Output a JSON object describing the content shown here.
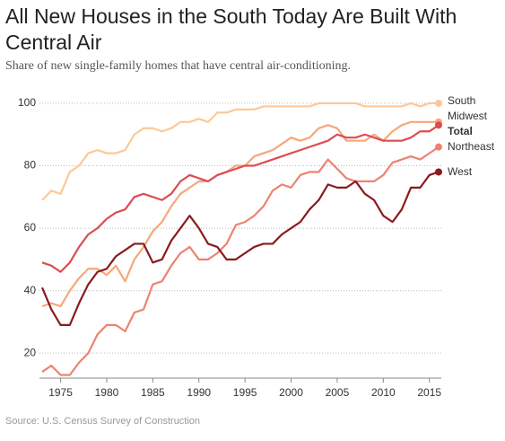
{
  "chart_data": {
    "type": "line",
    "title": "All New Houses in the South Today Are Built With Central Air",
    "subtitle": "Share of new single-family homes that have central air-conditioning.",
    "source": "Source: U.S. Census Survey of Construction",
    "x": [
      1973,
      1974,
      1975,
      1976,
      1977,
      1978,
      1979,
      1980,
      1981,
      1982,
      1983,
      1984,
      1985,
      1986,
      1987,
      1988,
      1989,
      1990,
      1991,
      1992,
      1993,
      1994,
      1995,
      1996,
      1997,
      1998,
      1999,
      2000,
      2001,
      2002,
      2003,
      2004,
      2005,
      2006,
      2007,
      2008,
      2009,
      2010,
      2011,
      2012,
      2013,
      2014,
      2015,
      2016
    ],
    "xlim": [
      1973,
      2016
    ],
    "xticks": [
      1975,
      1980,
      1985,
      1990,
      1995,
      2000,
      2005,
      2010,
      2015
    ],
    "ylim": [
      12,
      102
    ],
    "yticks": [
      20,
      40,
      60,
      80,
      100
    ],
    "grid": true,
    "series": [
      {
        "name": "South",
        "color": "#fdc896",
        "values": [
          69,
          72,
          71,
          78,
          80,
          84,
          85,
          84,
          84,
          85,
          90,
          92,
          92,
          91,
          92,
          94,
          94,
          95,
          94,
          97,
          97,
          98,
          98,
          98,
          99,
          99,
          99,
          99,
          99,
          99,
          100,
          100,
          100,
          100,
          100,
          99,
          99,
          99,
          99,
          99,
          100,
          99,
          100,
          100
        ]
      },
      {
        "name": "Midwest",
        "color": "#f5a878",
        "values": [
          35,
          36,
          35,
          40,
          44,
          47,
          47,
          45,
          48,
          43,
          50,
          54,
          59,
          62,
          67,
          71,
          73,
          75,
          75,
          77,
          78,
          80,
          80,
          83,
          84,
          85,
          87,
          89,
          88,
          89,
          92,
          93,
          92,
          88,
          88,
          88,
          90,
          88,
          91,
          93,
          94,
          94,
          94,
          94
        ]
      },
      {
        "name": "Total",
        "color": "#dc4d52",
        "values": [
          49,
          48,
          46,
          49,
          54,
          58,
          60,
          63,
          65,
          66,
          70,
          71,
          70,
          69,
          71,
          75,
          77,
          76,
          75,
          77,
          78,
          79,
          80,
          80,
          81,
          82,
          83,
          84,
          85,
          86,
          87,
          88,
          90,
          89,
          89,
          90,
          89,
          88,
          88,
          88,
          89,
          91,
          91,
          93
        ]
      },
      {
        "name": "Northeast",
        "color": "#ec8370",
        "values": [
          14,
          16,
          13,
          13,
          17,
          20,
          26,
          29,
          29,
          27,
          33,
          34,
          42,
          43,
          48,
          52,
          54,
          50,
          50,
          52,
          55,
          61,
          62,
          64,
          67,
          72,
          74,
          73,
          77,
          78,
          78,
          82,
          79,
          76,
          75,
          75,
          75,
          77,
          81,
          82,
          83,
          82,
          84,
          86
        ]
      },
      {
        "name": "West",
        "color": "#8b1a1e",
        "values": [
          41,
          34,
          29,
          29,
          36,
          42,
          46,
          47,
          51,
          53,
          55,
          55,
          49,
          50,
          56,
          60,
          64,
          60,
          55,
          54,
          50,
          50,
          52,
          54,
          55,
          55,
          58,
          60,
          62,
          66,
          69,
          74,
          73,
          73,
          75,
          71,
          69,
          64,
          62,
          66,
          73,
          73,
          77,
          78
        ]
      }
    ]
  }
}
